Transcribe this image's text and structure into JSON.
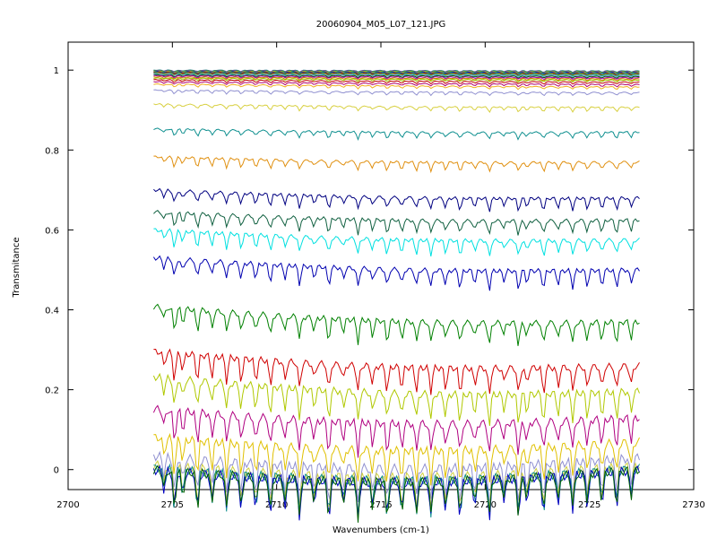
{
  "chart_data": {
    "type": "line",
    "title": "20060904_M05_L07_121.JPG",
    "xlabel": "Wavenumbers (cm-1)",
    "ylabel": "Transmitance",
    "xlim": [
      2700,
      2730
    ],
    "ylim": [
      -0.05,
      1.07
    ],
    "x_range": [
      2704.1,
      2727.4
    ],
    "xticks": [
      "2700",
      "2705",
      "2710",
      "2715",
      "2720",
      "2725",
      "2730"
    ],
    "yticks": [
      "0",
      "0.2",
      "0.4",
      "0.6",
      "0.8",
      "1"
    ],
    "grid": false,
    "legend": "none",
    "dip_centers": [
      2704.6,
      2705.1,
      2705.5,
      2706.2,
      2706.9,
      2707.6,
      2708.3,
      2709.0,
      2709.7,
      2710.4,
      2711.1,
      2711.8,
      2712.5,
      2713.2,
      2713.9,
      2714.6,
      2715.3,
      2716.0,
      2716.7,
      2717.4,
      2718.1,
      2718.8,
      2719.5,
      2720.2,
      2720.9,
      2721.6,
      2722.0,
      2722.8,
      2723.5,
      2724.2,
      2724.9,
      2725.6,
      2726.3,
      2727.0
    ],
    "series": [
      {
        "color": "#1f8080",
        "start": 1.0,
        "end": 0.998
      },
      {
        "color": "#7a3fb0",
        "start": 0.999,
        "end": 0.997
      },
      {
        "color": "#2ca02c",
        "start": 0.998,
        "end": 0.996
      },
      {
        "color": "#e0c000",
        "start": 0.997,
        "end": 0.995
      },
      {
        "color": "#0000c0",
        "start": 0.996,
        "end": 0.994
      },
      {
        "color": "#00a0a0",
        "start": 0.995,
        "end": 0.993
      },
      {
        "color": "#c00000",
        "start": 0.994,
        "end": 0.991
      },
      {
        "color": "#808000",
        "start": 0.993,
        "end": 0.99
      },
      {
        "color": "#00c0c0",
        "start": 0.991,
        "end": 0.988
      },
      {
        "color": "#9090d0",
        "start": 0.99,
        "end": 0.986
      },
      {
        "color": "#006000",
        "start": 0.988,
        "end": 0.984
      },
      {
        "color": "#b000b0",
        "start": 0.986,
        "end": 0.981
      },
      {
        "color": "#d08000",
        "start": 0.983,
        "end": 0.978
      },
      {
        "color": "#a0c000",
        "start": 0.98,
        "end": 0.975
      },
      {
        "color": "#c00000",
        "start": 0.976,
        "end": 0.97
      },
      {
        "color": "#b00070",
        "start": 0.971,
        "end": 0.964
      },
      {
        "color": "#f0b020",
        "start": 0.965,
        "end": 0.958
      },
      {
        "color": "#9090d0",
        "start": 0.95,
        "end": 0.944
      },
      {
        "color": "#d8d040",
        "start": 0.915,
        "end": 0.907
      },
      {
        "color": "#109090",
        "start": 0.853,
        "end": 0.845
      },
      {
        "color": "#e09010",
        "start": 0.783,
        "end": 0.77
      },
      {
        "color": "#000080",
        "start": 0.7,
        "end": 0.68
      },
      {
        "color": "#106040",
        "start": 0.645,
        "end": 0.625
      },
      {
        "color": "#00e0e0",
        "start": 0.6,
        "end": 0.575
      },
      {
        "color": "#0000b0",
        "start": 0.53,
        "end": 0.5
      },
      {
        "color": "#008000",
        "start": 0.408,
        "end": 0.37
      },
      {
        "color": "#d00000",
        "start": 0.296,
        "end": 0.26
      },
      {
        "color": "#b0c800",
        "start": 0.232,
        "end": 0.196
      },
      {
        "color": "#b00080",
        "start": 0.152,
        "end": 0.13
      },
      {
        "color": "#e0c000",
        "start": 0.081,
        "end": 0.07
      },
      {
        "color": "#9090d0",
        "start": 0.034,
        "end": 0.03
      },
      {
        "color": "#d0d040",
        "start": 0.012,
        "end": 0.01
      },
      {
        "color": "#109090",
        "start": 0.004,
        "end": 0.003
      },
      {
        "color": "#0000c0",
        "start": -0.001,
        "end": -0.001
      },
      {
        "color": "#006000",
        "start": 0.0,
        "end": 0.0
      }
    ]
  }
}
